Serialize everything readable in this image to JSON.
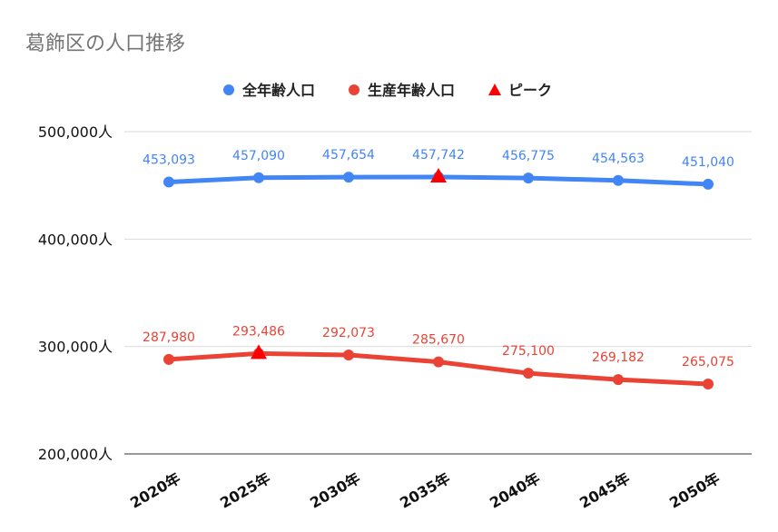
{
  "chart_data": {
    "type": "line",
    "title": "葛飾区の人口推移",
    "xlabel": "",
    "ylabel": "",
    "categories": [
      "2020年",
      "2025年",
      "2030年",
      "2035年",
      "2040年",
      "2045年",
      "2050年"
    ],
    "y_ticks": [
      "200,000人",
      "300,000人",
      "400,000人",
      "500,000人"
    ],
    "y_tick_values": [
      200000,
      300000,
      400000,
      500000
    ],
    "ylim": [
      200000,
      500000
    ],
    "grid": true,
    "legend_position": "top",
    "series": [
      {
        "name": "全年齢人口",
        "color": "#4285f4",
        "values": [
          453093,
          457090,
          457654,
          457742,
          456775,
          454563,
          451040
        ],
        "labels": [
          "453,093",
          "457,090",
          "457,654",
          "457,742",
          "456,775",
          "454,563",
          "451,040"
        ]
      },
      {
        "name": "生産年齢人口",
        "color": "#ea4335",
        "values": [
          287980,
          293486,
          292073,
          285670,
          275100,
          269182,
          265075
        ],
        "labels": [
          "287,980",
          "293,486",
          "292,073",
          "285,670",
          "275,100",
          "269,182",
          "265,075"
        ]
      }
    ],
    "peak": {
      "name": "ピーク",
      "color": "#ff0000",
      "points": [
        {
          "series": 0,
          "index": 3
        },
        {
          "series": 1,
          "index": 1
        }
      ]
    }
  }
}
